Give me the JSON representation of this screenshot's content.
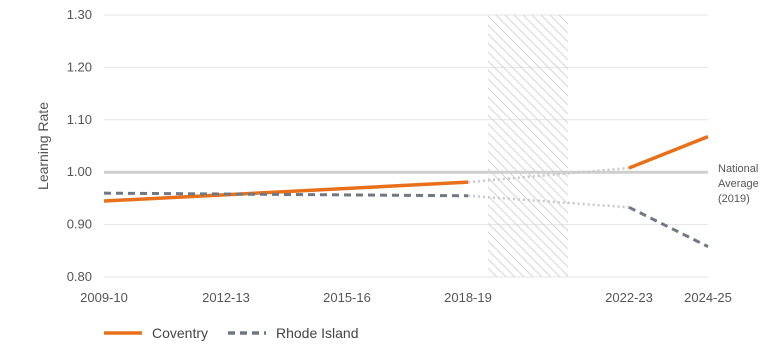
{
  "chart_data": {
    "type": "line",
    "ylabel": "Learning Rate",
    "ylim": [
      0.8,
      1.3
    ],
    "y_ticks": [
      "1.30",
      "1.20",
      "1.10",
      "1.00",
      "0.90",
      "0.80"
    ],
    "x_ticks": [
      "2009-10",
      "2012-13",
      "2015-16",
      "2018-19",
      "2022-23",
      "2024-25"
    ],
    "grid": "horizontal",
    "reference_line": {
      "value": 1.0,
      "label_lines": [
        "National",
        "Average",
        "(2019)"
      ]
    },
    "shaded_region": {
      "from": "2019-20",
      "to": "2021-22",
      "pattern": "diagonal-hatch"
    },
    "legend_position": "bottom-left",
    "series": [
      {
        "name": "Coventry",
        "color": "#e8701a",
        "style": "solid",
        "points": [
          [
            "2009-10",
            0.945
          ],
          [
            "2018-19",
            0.981
          ],
          [
            "2022-23",
            1.008
          ],
          [
            "2024-25",
            1.068
          ]
        ],
        "gap_points": [
          [
            "2018-19",
            0.981
          ],
          [
            "2022-23",
            1.008
          ]
        ]
      },
      {
        "name": "Rhode Island",
        "color": "#6f7983",
        "style": "dashed",
        "points": [
          [
            "2009-10",
            0.96
          ],
          [
            "2018-19",
            0.955
          ],
          [
            "2022-23",
            0.933
          ],
          [
            "2024-25",
            0.858
          ]
        ],
        "gap_points": [
          [
            "2018-19",
            0.955
          ],
          [
            "2022-23",
            0.933
          ]
        ]
      }
    ]
  }
}
